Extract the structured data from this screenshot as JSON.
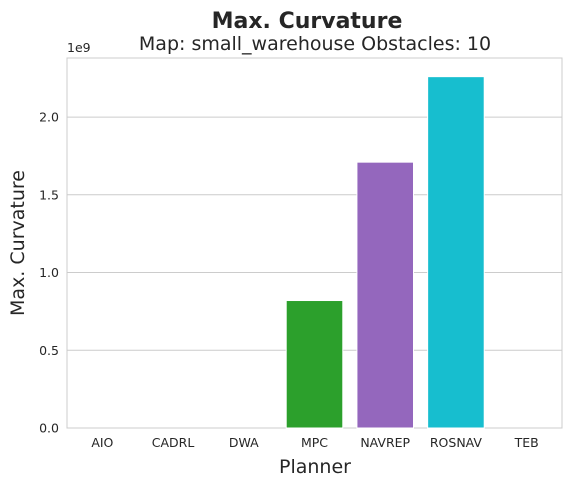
{
  "chart_data": {
    "type": "bar",
    "title": "Max. Curvature",
    "subtitle": "Map: small_warehouse Obstacles: 10",
    "xlabel": "Planner",
    "ylabel": "Max. Curvature",
    "y_offset_label": "1e9",
    "categories": [
      "AIO",
      "CADRL",
      "DWA",
      "MPC",
      "NAVREP",
      "ROSNAV",
      "TEB"
    ],
    "values": [
      0,
      0,
      0,
      0.82,
      1.71,
      2.26,
      0
    ],
    "ylim": [
      0,
      2.38
    ],
    "yticks": [
      0.0,
      0.5,
      1.0,
      1.5,
      2.0
    ],
    "ytick_labels": [
      "0.0",
      "0.5",
      "1.0",
      "1.5",
      "2.0"
    ],
    "colors": [
      "#1f77b4",
      "#ff7f0e",
      "#d62728",
      "#2ca02c",
      "#9467bd",
      "#8c564b",
      "#17becf"
    ],
    "bar_colors_visible": [
      "#1f77b4",
      "#ff7f0e",
      "#d62728",
      "#2ca02c",
      "#9467bd",
      "#17becf",
      "#e377c2"
    ],
    "grid": true,
    "style": "seaborn-whitegrid"
  }
}
